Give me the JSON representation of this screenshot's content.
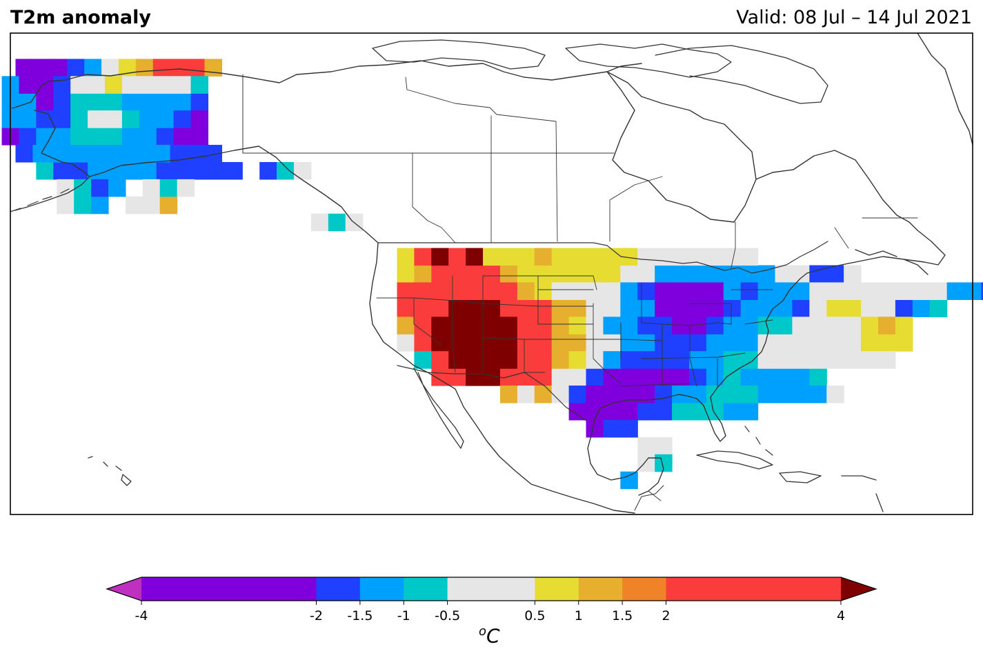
{
  "header": {
    "title": "T2m anomaly",
    "valid": "Valid: 08 Jul – 14 Jul 2021"
  },
  "colorbar": {
    "unit_base": "C",
    "unit_sup": "o",
    "extend": "both",
    "under_color": "#c030c0",
    "over_color": "#7f0000",
    "boundaries": [
      -4,
      -2,
      -1.5,
      -1,
      -0.5,
      0.5,
      1,
      1.5,
      2,
      4
    ],
    "colors": [
      "#7f00dc",
      "#2040ff",
      "#00a0ff",
      "#00c8c8",
      "#e6e6e6",
      "#e6dc32",
      "#e6af2d",
      "#f08228",
      "#fa3c3c"
    ],
    "tick_labels": [
      "-4",
      "-2",
      "-1.5",
      "-1",
      "-0.5",
      "0.5",
      "1",
      "1.5",
      "2",
      "4"
    ]
  },
  "map": {
    "projection": "PlateCarree",
    "extent_lon": [
      -180,
      -40
    ],
    "extent_lat": [
      10,
      80
    ],
    "grid_resolution_deg": 2.5,
    "features": [
      "coastlines",
      "country-borders",
      "us-state-borders",
      "canada-province-borders"
    ],
    "category_key": {
      "P": "below -2",
      "B": "-2 to -1.5",
      "L": "-1.5 to -1",
      "C": "-1 to -0.5",
      "G": "-0.5 to 0.5",
      "Y": "0.5 to 1",
      "O": "1 to 1.5",
      "R": "1.5 to 2",
      "E": "2 to 4",
      "D": "above 4"
    },
    "anomaly_rows": {
      "75": "-178:PPPBLGYOEEEO",
      "72.5": "-180:LPPBGGYGGGGC",
      "70": "-180:LLPBCCCLLLLB",
      "67.5": "-180:LLBBCGGCLLBP",
      "65": "-180:PBLLCCCLLBPP",
      "62.5": "-178:BLLLLLLLLBBB",
      "60": "-175:CBBLLLLBBBBB BCG",
      "57.5": "-172:GCBL GCG",
      "55": "-172:GCL GGO",
      "52.5": "-135:GCG",
      "47.5": "-122.5:YEDEDYYYOYYYYYGGGGGGG",
      "45": "-122.5:YOEEEEOYYYYYYGGLLLLLLLGGBBG",
      "42.5": "-122.5:EEEEEEEOYGGGGLBPPPPLBLLLGGGGGGGGLLBB",
      "40": "-122.5:EEEDDDEEEOOGGLLPPPPBLLLBGYYGGBLC",
      "37.5": "-122.5:OEDDDDDEEOYGLLBBPPBLLCCGGGGYOY",
      "35": "-122.5:GEDDDDDEEOOGGLLBBBLLLGGGGGGYYY",
      "32.5": "-120:CEDDDDEEOYGLBBBBLLCCGGGGGGGG",
      "30": "-117.5:EEDDEEEGGBPPPPPBLCLLLLC",
      "27.5": "-107.5:OGOGBPPPPBLLCCCLLLLG",
      "25": "-97.5:PPPPBBCCCLL",
      "22.5": "-95:PBB",
      "20": "-87.5:GG",
      "17.5": "-87.5:GC",
      "15": "-90:L"
    }
  }
}
